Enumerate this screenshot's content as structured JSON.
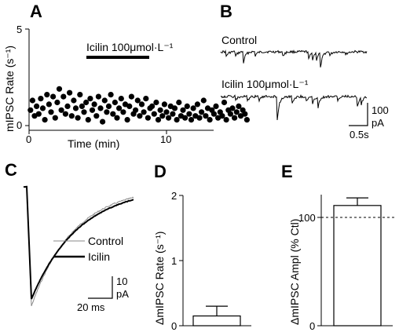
{
  "panels": {
    "A": {
      "letter": "A",
      "ylabel": "mIPSC Rate (s⁻¹)",
      "xlabel": "Time (min)",
      "ytick_labels": [
        "0",
        "5"
      ],
      "xtick_labels": [
        "0",
        "10"
      ],
      "drug_label": "Icilin 100μmol·L⁻¹"
    },
    "B": {
      "letter": "B",
      "control_label": "Control",
      "icilin_label": "Icilin 100μmol·L⁻¹",
      "scale_amp": "100",
      "scale_amp_unit": "pA",
      "scale_time": "0.5s"
    },
    "C": {
      "letter": "C",
      "legend": [
        "Control",
        "Icilin"
      ],
      "scale_amp": "10",
      "scale_amp_unit": "pA",
      "scale_time": "20 ms"
    },
    "D": {
      "letter": "D",
      "ylabel": "ΔmIPSC Rate (s⁻¹)",
      "ytick_labels": [
        "0",
        "1",
        "2"
      ]
    },
    "E": {
      "letter": "E",
      "ylabel": "ΔmIPSC Ampl (% Ctl)",
      "ytick_labels": [
        "0",
        "100"
      ]
    }
  },
  "chart_data": [
    {
      "panel": "A",
      "type": "scatter",
      "xlabel": "Time (min)",
      "ylabel": "mIPSC Rate (s⁻¹)",
      "xlim": [
        0,
        16
      ],
      "ylim": [
        0,
        5
      ],
      "drug_period": [
        4.3,
        8.5
      ],
      "drug_label": "Icilin 100μmol·L⁻¹",
      "x": [
        0.1,
        0.25,
        0.4,
        0.55,
        0.7,
        0.85,
        1.0,
        1.15,
        1.3,
        1.45,
        1.6,
        1.75,
        1.9,
        2.05,
        2.2,
        2.35,
        2.5,
        2.65,
        2.8,
        2.95,
        3.1,
        3.25,
        3.4,
        3.55,
        3.7,
        3.85,
        4.0,
        4.15,
        4.3,
        4.45,
        4.6,
        4.75,
        4.9,
        5.05,
        5.2,
        5.35,
        5.5,
        5.65,
        5.8,
        5.95,
        6.1,
        6.25,
        6.4,
        6.55,
        6.7,
        6.85,
        7.0,
        7.15,
        7.3,
        7.45,
        7.6,
        7.75,
        7.9,
        8.05,
        8.2,
        8.35,
        8.5,
        8.65,
        8.8,
        8.95,
        9.1,
        9.25,
        9.4,
        9.55,
        9.7,
        9.85,
        10.0,
        10.15,
        10.3,
        10.45,
        10.6,
        10.75,
        10.9,
        11.05,
        11.2,
        11.35,
        11.5,
        11.65,
        11.8,
        11.95,
        12.1,
        12.25,
        12.4,
        12.55,
        12.7,
        12.85,
        13.0,
        13.15,
        13.3,
        13.45,
        13.6,
        13.75,
        13.9,
        14.05,
        14.2,
        14.35,
        14.5,
        14.65,
        14.8,
        14.95,
        15.1,
        15.25,
        15.4,
        15.55,
        15.7,
        15.85
      ],
      "values": [
        0.8,
        1.3,
        0.5,
        1.0,
        0.6,
        1.4,
        0.9,
        0.3,
        1.6,
        1.1,
        0.7,
        1.5,
        0.4,
        1.2,
        1.9,
        0.8,
        1.5,
        0.6,
        1.0,
        1.7,
        0.5,
        1.3,
        0.9,
        0.4,
        1.6,
        1.0,
        0.7,
        1.2,
        0.3,
        1.4,
        0.8,
        1.1,
        0.5,
        1.5,
        0.9,
        0.2,
        1.3,
        0.7,
        1.0,
        1.6,
        0.6,
        1.2,
        0.4,
        0.9,
        1.4,
        0.7,
        1.1,
        0.3,
        1.0,
        1.5,
        0.6,
        0.8,
        1.3,
        0.5,
        1.1,
        0.7,
        1.4,
        0.4,
        0.9,
        1.0,
        0.6,
        1.2,
        0.3,
        0.8,
        0.5,
        1.1,
        0.7,
        0.4,
        1.0,
        0.6,
        0.9,
        0.3,
        1.2,
        0.5,
        0.8,
        0.4,
        1.0,
        0.6,
        0.3,
        0.9,
        0.5,
        1.1,
        0.4,
        0.7,
        1.3,
        0.5,
        0.9,
        0.3,
        0.8,
        0.6,
        1.0,
        0.4,
        0.7,
        0.5,
        1.2,
        0.3,
        0.8,
        0.6,
        0.9,
        0.4,
        0.7,
        1.0,
        0.5,
        0.8,
        0.6,
        0.3
      ]
    },
    {
      "panel": "D",
      "type": "bar",
      "ylabel": "ΔmIPSC Rate (s⁻¹)",
      "ylim": [
        0,
        2
      ],
      "values": [
        0.15
      ],
      "errors": [
        0.15
      ]
    },
    {
      "panel": "E",
      "type": "bar",
      "ylabel": "ΔmIPSC Ampl (% Ctl)",
      "ylim": [
        0,
        120
      ],
      "values": [
        111
      ],
      "errors": [
        7
      ],
      "reference_line": 100
    }
  ]
}
